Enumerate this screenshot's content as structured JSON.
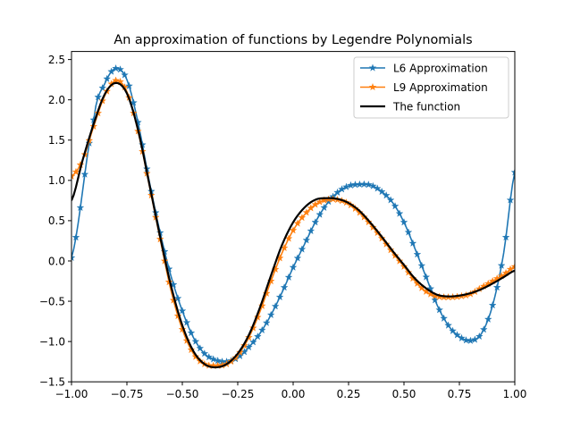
{
  "chart_data": {
    "type": "line",
    "title": "An approximation of functions by Legendre Polynomials",
    "xlabel": "",
    "ylabel": "",
    "xlim": [
      -1.0,
      1.0
    ],
    "ylim": [
      -1.5,
      2.6
    ],
    "grid": false,
    "legend_position": "top-right",
    "x_ticks": [
      -1.0,
      -0.75,
      -0.5,
      -0.25,
      0.0,
      0.25,
      0.5,
      0.75,
      1.0
    ],
    "x_tick_labels": [
      "−1.00",
      "−0.75",
      "−0.50",
      "−0.25",
      "0.00",
      "0.25",
      "0.50",
      "0.75",
      "1.00"
    ],
    "y_ticks": [
      -1.5,
      -1.0,
      -0.5,
      0.0,
      0.5,
      1.0,
      1.5,
      2.0,
      2.5
    ],
    "y_tick_labels": [
      "−1.5",
      "−1.0",
      "−0.5",
      "0.0",
      "0.5",
      "1.0",
      "1.5",
      "2.0",
      "2.5"
    ],
    "series": [
      {
        "name": "L6 Approximation",
        "color": "#1f77b4",
        "marker": "star",
        "x": [
          -1.0,
          -0.9,
          -0.85,
          -0.8,
          -0.75,
          -0.7,
          -0.65,
          -0.6,
          -0.55,
          -0.5,
          -0.45,
          -0.4,
          -0.35,
          -0.3,
          -0.25,
          -0.2,
          -0.15,
          -0.1,
          -0.05,
          0.0,
          0.05,
          0.1,
          0.15,
          0.2,
          0.25,
          0.3,
          0.35,
          0.4,
          0.45,
          0.5,
          0.55,
          0.6,
          0.65,
          0.7,
          0.75,
          0.8,
          0.85,
          0.9,
          0.95,
          1.0
        ],
        "y": [
          0.04,
          1.75,
          2.2,
          2.39,
          2.25,
          1.72,
          1.0,
          0.35,
          -0.2,
          -0.62,
          -0.95,
          -1.15,
          -1.23,
          -1.25,
          -1.2,
          -1.07,
          -0.9,
          -0.67,
          -0.39,
          -0.08,
          0.2,
          0.48,
          0.7,
          0.85,
          0.93,
          0.95,
          0.94,
          0.86,
          0.72,
          0.48,
          0.15,
          -0.2,
          -0.55,
          -0.8,
          -0.94,
          -0.99,
          -0.9,
          -0.55,
          0.1,
          1.1
        ]
      },
      {
        "name": "L9 Approximation",
        "color": "#ff7f0e",
        "marker": "star",
        "x": [
          -1.0,
          -0.95,
          -0.9,
          -0.85,
          -0.8,
          -0.75,
          -0.7,
          -0.65,
          -0.6,
          -0.55,
          -0.5,
          -0.45,
          -0.4,
          -0.35,
          -0.3,
          -0.25,
          -0.2,
          -0.15,
          -0.1,
          -0.05,
          0.0,
          0.05,
          0.1,
          0.15,
          0.2,
          0.25,
          0.3,
          0.35,
          0.4,
          0.45,
          0.5,
          0.55,
          0.6,
          0.65,
          0.7,
          0.75,
          0.8,
          0.85,
          0.9,
          0.95,
          1.0
        ],
        "y": [
          1.05,
          1.25,
          1.67,
          2.05,
          2.24,
          2.1,
          1.61,
          0.95,
          0.27,
          -0.38,
          -0.85,
          -1.15,
          -1.28,
          -1.3,
          -1.28,
          -1.17,
          -0.95,
          -0.63,
          -0.25,
          0.1,
          0.38,
          0.57,
          0.7,
          0.76,
          0.76,
          0.71,
          0.6,
          0.45,
          0.28,
          0.1,
          -0.07,
          -0.25,
          -0.38,
          -0.44,
          -0.45,
          -0.44,
          -0.41,
          -0.33,
          -0.25,
          -0.17,
          -0.07
        ]
      },
      {
        "name": "The function",
        "color": "#000000",
        "marker": "none",
        "x": [
          -1.0,
          -0.95,
          -0.9,
          -0.85,
          -0.8,
          -0.75,
          -0.7,
          -0.65,
          -0.6,
          -0.55,
          -0.5,
          -0.45,
          -0.4,
          -0.35,
          -0.3,
          -0.25,
          -0.2,
          -0.15,
          -0.1,
          -0.05,
          0.0,
          0.05,
          0.1,
          0.15,
          0.2,
          0.25,
          0.3,
          0.35,
          0.4,
          0.45,
          0.5,
          0.55,
          0.6,
          0.65,
          0.7,
          0.75,
          0.8,
          0.85,
          0.9,
          0.95,
          1.0
        ],
        "y": [
          0.75,
          1.25,
          1.7,
          2.07,
          2.21,
          2.08,
          1.63,
          0.97,
          0.3,
          -0.32,
          -0.8,
          -1.12,
          -1.28,
          -1.32,
          -1.28,
          -1.15,
          -0.92,
          -0.58,
          -0.18,
          0.2,
          0.48,
          0.66,
          0.76,
          0.78,
          0.77,
          0.72,
          0.62,
          0.47,
          0.3,
          0.12,
          -0.05,
          -0.22,
          -0.34,
          -0.42,
          -0.44,
          -0.43,
          -0.4,
          -0.35,
          -0.28,
          -0.2,
          -0.12
        ]
      }
    ]
  }
}
